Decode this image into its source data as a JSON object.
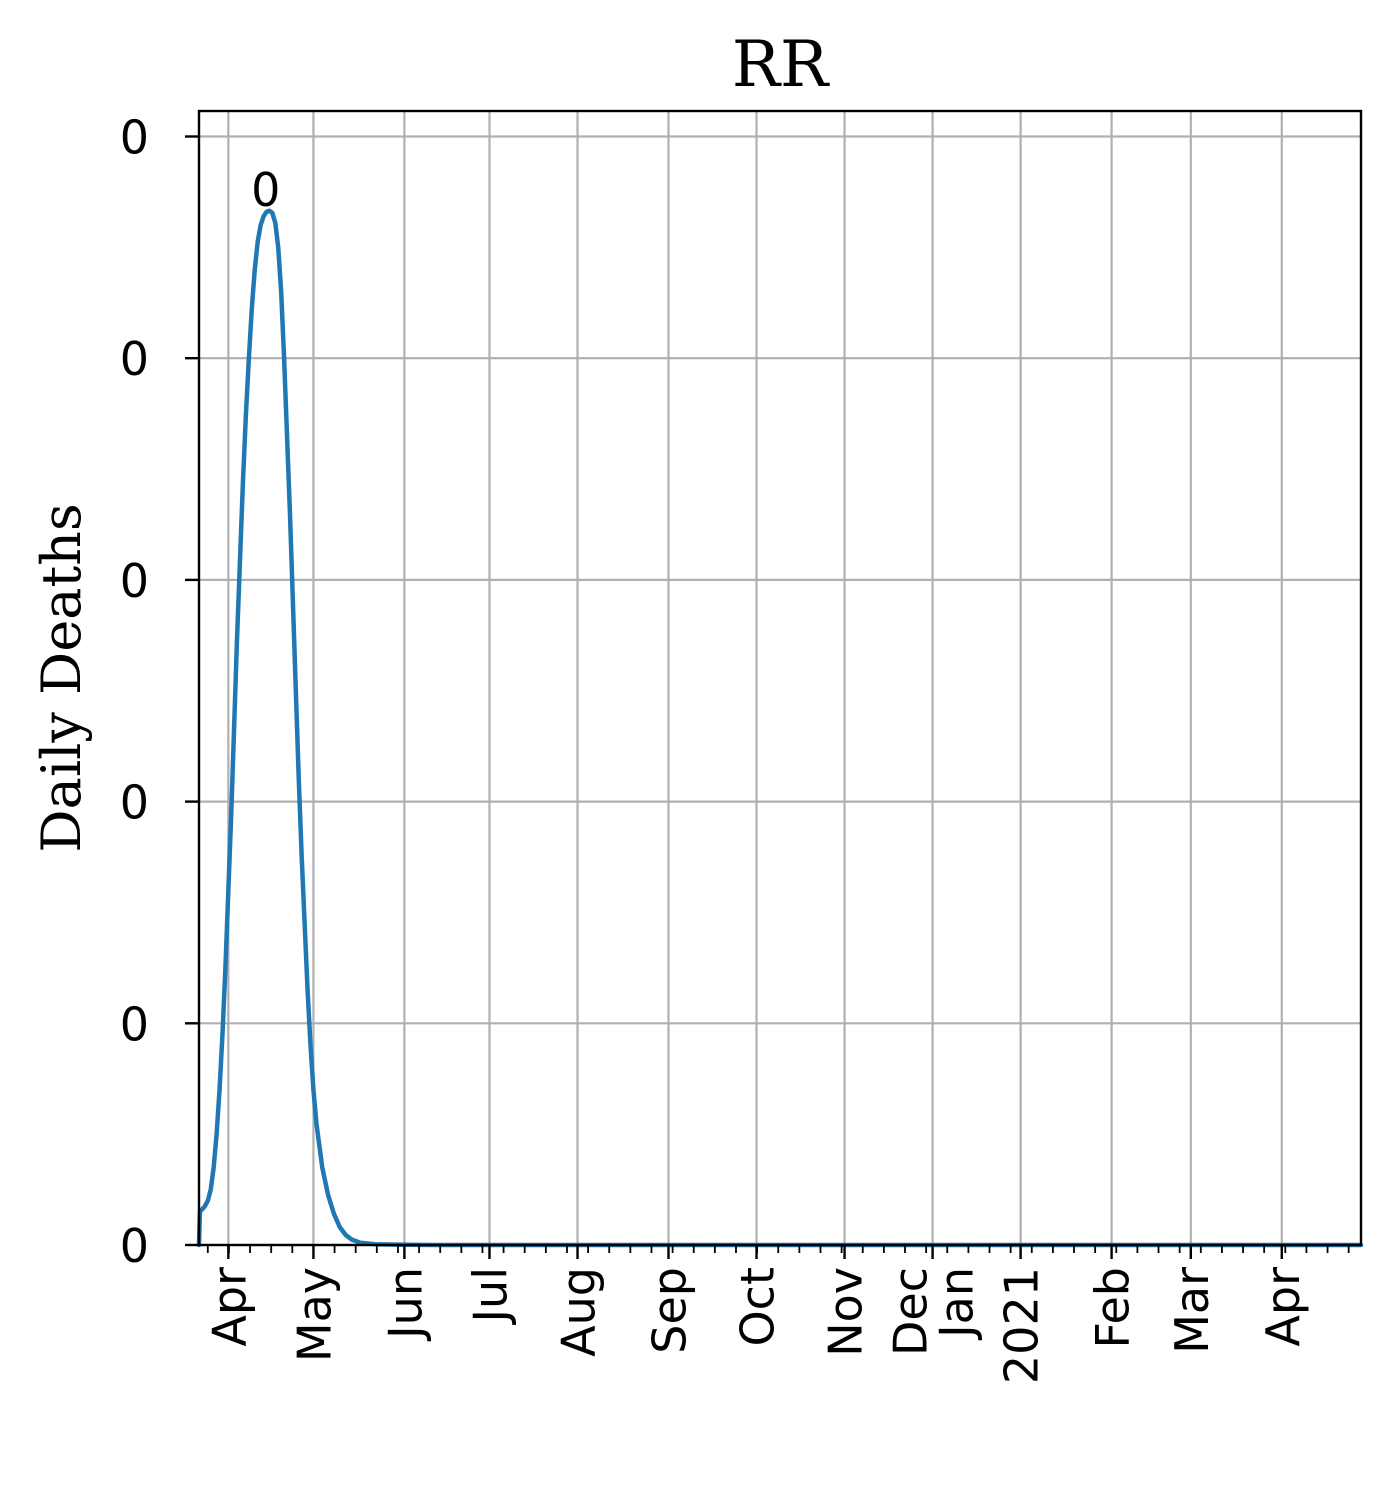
{
  "chart_data": {
    "type": "line",
    "title": "RR",
    "xlabel": "",
    "ylabel": "Daily Deaths",
    "grid": true,
    "x_range_days": [
      0,
      396
    ],
    "y_range": [
      0,
      1.023
    ],
    "y_ticks": [
      {
        "value": 0.0,
        "label": "0"
      },
      {
        "value": 0.2,
        "label": "0"
      },
      {
        "value": 0.4,
        "label": "0"
      },
      {
        "value": 0.6,
        "label": "0"
      },
      {
        "value": 0.8,
        "label": "0"
      },
      {
        "value": 1.0,
        "label": "0"
      }
    ],
    "x_ticks": [
      {
        "day": 10,
        "lines": [
          "Apr"
        ]
      },
      {
        "day": 39,
        "lines": [
          "May"
        ]
      },
      {
        "day": 70,
        "lines": [
          "Jun"
        ]
      },
      {
        "day": 99,
        "lines": [
          "Jul"
        ]
      },
      {
        "day": 129,
        "lines": [
          "Aug"
        ]
      },
      {
        "day": 160,
        "lines": [
          "Sep"
        ]
      },
      {
        "day": 190,
        "lines": [
          "Oct"
        ]
      },
      {
        "day": 220,
        "lines": [
          "Nov"
        ]
      },
      {
        "day": 250,
        "lines": [
          "Dec",
          "Jan"
        ]
      },
      {
        "day": 280,
        "lines": [
          "2021"
        ]
      },
      {
        "day": 311,
        "lines": [
          "Feb"
        ]
      },
      {
        "day": 338,
        "lines": [
          "Mar"
        ]
      },
      {
        "day": 369,
        "lines": [
          "Apr"
        ]
      }
    ],
    "peak_annotation": {
      "day": 26.5,
      "value": 0.93,
      "label": "0"
    },
    "series": [
      {
        "name": "RR",
        "color": "#1f77b4",
        "points": [
          [
            0,
            0.0
          ],
          [
            0.3,
            0.03
          ],
          [
            1,
            0.032
          ],
          [
            2,
            0.035
          ],
          [
            3,
            0.04
          ],
          [
            4,
            0.05
          ],
          [
            5,
            0.07
          ],
          [
            6,
            0.1
          ],
          [
            7,
            0.14
          ],
          [
            8,
            0.19
          ],
          [
            9,
            0.25
          ],
          [
            10,
            0.32
          ],
          [
            11,
            0.39
          ],
          [
            12,
            0.47
          ],
          [
            13,
            0.55
          ],
          [
            14,
            0.62
          ],
          [
            15,
            0.69
          ],
          [
            16,
            0.75
          ],
          [
            17,
            0.8
          ],
          [
            18,
            0.845
          ],
          [
            19,
            0.88
          ],
          [
            20,
            0.905
          ],
          [
            21,
            0.92
          ],
          [
            22,
            0.928
          ],
          [
            23,
            0.932
          ],
          [
            24,
            0.933
          ],
          [
            25,
            0.931
          ],
          [
            26,
            0.922
          ],
          [
            27,
            0.9
          ],
          [
            28,
            0.86
          ],
          [
            29,
            0.8
          ],
          [
            30,
            0.73
          ],
          [
            31,
            0.66
          ],
          [
            32,
            0.58
          ],
          [
            33,
            0.5
          ],
          [
            34,
            0.42
          ],
          [
            35,
            0.35
          ],
          [
            36,
            0.29
          ],
          [
            37,
            0.23
          ],
          [
            38,
            0.18
          ],
          [
            39,
            0.14
          ],
          [
            40,
            0.11
          ],
          [
            42,
            0.07
          ],
          [
            44,
            0.045
          ],
          [
            46,
            0.028
          ],
          [
            48,
            0.016
          ],
          [
            50,
            0.009
          ],
          [
            52,
            0.005
          ],
          [
            55,
            0.002
          ],
          [
            60,
            0.0007
          ],
          [
            70,
            0.0002
          ],
          [
            80,
            0.0
          ],
          [
            396,
            0.0
          ]
        ]
      }
    ]
  }
}
